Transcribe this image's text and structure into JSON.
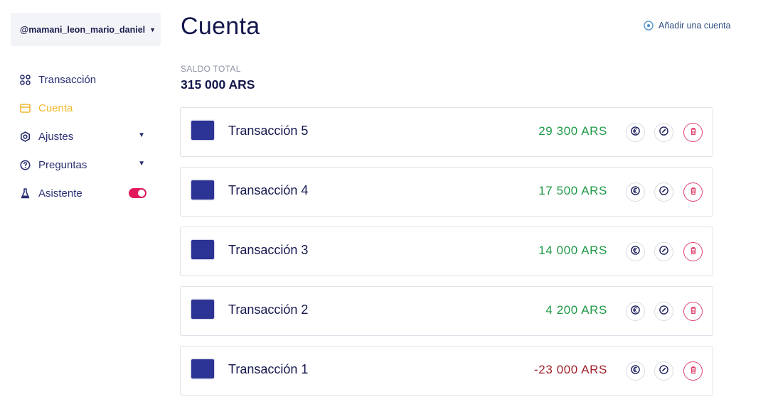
{
  "sidebar": {
    "username": "@mamani_leon_mario_daniel",
    "items": [
      {
        "label": "Transacción",
        "icon": "grid-icon",
        "active": false,
        "has_chevron": false,
        "has_toggle": false
      },
      {
        "label": "Cuenta",
        "icon": "card-icon",
        "active": true,
        "has_chevron": false,
        "has_toggle": false
      },
      {
        "label": "Ajustes",
        "icon": "gear-icon",
        "active": false,
        "has_chevron": true,
        "has_toggle": false
      },
      {
        "label": "Preguntas",
        "icon": "question-icon",
        "active": false,
        "has_chevron": true,
        "has_toggle": false
      },
      {
        "label": "Asistente",
        "icon": "flask-icon",
        "active": false,
        "has_chevron": false,
        "has_toggle": true,
        "toggle_on": true
      }
    ]
  },
  "header": {
    "title": "Cuenta",
    "add_account_label": "Añadir una cuenta"
  },
  "summary": {
    "label": "SALDO TOTAL",
    "value": "315 000 ARS"
  },
  "transactions": [
    {
      "name": "Transacción 5",
      "amount": "29 300 ARS",
      "sign": "pos"
    },
    {
      "name": "Transacción 4",
      "amount": "17 500 ARS",
      "sign": "pos"
    },
    {
      "name": "Transacción 3",
      "amount": "14 000 ARS",
      "sign": "pos"
    },
    {
      "name": "Transacción 2",
      "amount": "4 200 ARS",
      "sign": "pos"
    },
    {
      "name": "Transacción 1",
      "amount": "-23 000 ARS",
      "sign": "neg"
    }
  ],
  "colors": {
    "accent": "#f0b72c",
    "navy": "#14174d",
    "positive": "#1f9a47",
    "negative": "#a0202a",
    "danger": "#e0446f",
    "toggle": "#e2195a"
  }
}
